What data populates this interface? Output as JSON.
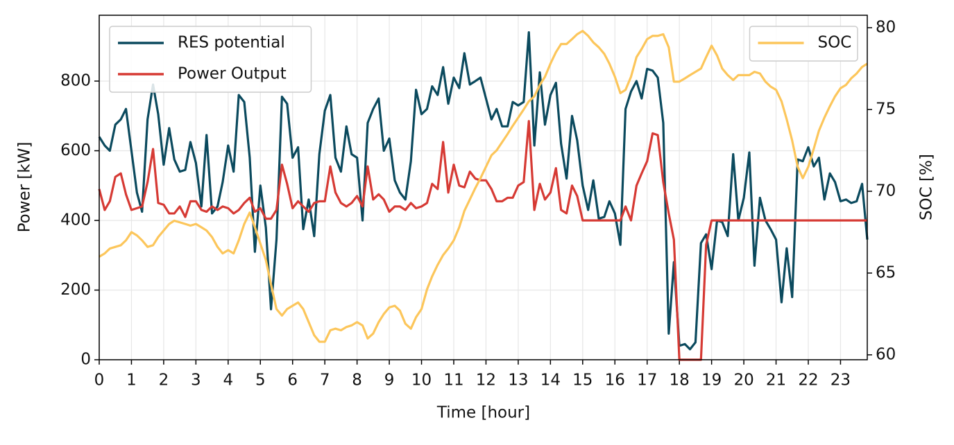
{
  "chart_data": {
    "type": "line",
    "xlabel": "Time [hour]",
    "ylabel": "Power [kW]",
    "y2label": "SOC [%]",
    "xlim": [
      0,
      23.83
    ],
    "xticks": [
      0,
      1,
      2,
      3,
      4,
      5,
      6,
      7,
      8,
      9,
      10,
      11,
      12,
      13,
      14,
      15,
      16,
      17,
      18,
      19,
      20,
      21,
      22,
      23
    ],
    "ylim": [
      0,
      989
    ],
    "yticks": [
      0,
      200,
      400,
      600,
      800
    ],
    "y2lim": [
      59.7,
      80.76
    ],
    "y2ticks": [
      60,
      65,
      70,
      75,
      80
    ],
    "grid": true,
    "legend": "upper left",
    "y2_legend": "upper right",
    "x": [
      0,
      0.17,
      0.33,
      0.5,
      0.67,
      0.83,
      1,
      1.17,
      1.33,
      1.5,
      1.67,
      1.83,
      2,
      2.17,
      2.33,
      2.5,
      2.67,
      2.83,
      3,
      3.17,
      3.33,
      3.5,
      3.67,
      3.83,
      4,
      4.17,
      4.33,
      4.5,
      4.67,
      4.83,
      5,
      5.17,
      5.33,
      5.5,
      5.67,
      5.83,
      6,
      6.17,
      6.33,
      6.5,
      6.67,
      6.83,
      7,
      7.17,
      7.33,
      7.5,
      7.67,
      7.83,
      8,
      8.17,
      8.33,
      8.5,
      8.67,
      8.83,
      9,
      9.17,
      9.33,
      9.5,
      9.67,
      9.83,
      10,
      10.17,
      10.33,
      10.5,
      10.67,
      10.83,
      11,
      11.17,
      11.33,
      11.5,
      11.67,
      11.83,
      12,
      12.17,
      12.33,
      12.5,
      12.67,
      12.83,
      13,
      13.17,
      13.33,
      13.5,
      13.67,
      13.83,
      14,
      14.17,
      14.33,
      14.5,
      14.67,
      14.83,
      15,
      15.17,
      15.33,
      15.5,
      15.67,
      15.83,
      16,
      16.17,
      16.33,
      16.5,
      16.67,
      16.83,
      17,
      17.17,
      17.33,
      17.5,
      17.67,
      17.83,
      18,
      18.17,
      18.33,
      18.5,
      18.67,
      18.83,
      19,
      19.17,
      19.33,
      19.5,
      19.67,
      19.83,
      20,
      20.17,
      20.33,
      20.5,
      20.67,
      20.83,
      21,
      21.17,
      21.33,
      21.5,
      21.67,
      21.83,
      22,
      22.17,
      22.33,
      22.5,
      22.67,
      22.83,
      23,
      23.17,
      23.33,
      23.5,
      23.67,
      23.83
    ],
    "series": [
      {
        "name": "RES potential",
        "color": "#0b4a5e",
        "values": [
          640,
          615,
          600,
          675,
          690,
          720,
          600,
          480,
          425,
          690,
          790,
          705,
          560,
          665,
          575,
          540,
          545,
          625,
          565,
          440,
          645,
          420,
          440,
          510,
          615,
          540,
          760,
          740,
          580,
          310,
          500,
          380,
          145,
          345,
          755,
          735,
          580,
          610,
          375,
          460,
          355,
          590,
          715,
          760,
          580,
          540,
          670,
          590,
          580,
          400,
          680,
          720,
          750,
          600,
          635,
          515,
          480,
          460,
          570,
          775,
          705,
          720,
          785,
          760,
          840,
          735,
          810,
          780,
          880,
          790,
          800,
          810,
          750,
          690,
          720,
          670,
          670,
          740,
          730,
          740,
          940,
          615,
          825,
          675,
          760,
          795,
          620,
          520,
          700,
          630,
          500,
          430,
          515,
          405,
          410,
          455,
          420,
          330,
          720,
          770,
          800,
          750,
          835,
          830,
          810,
          680,
          75,
          280,
          40,
          45,
          30,
          50,
          335,
          360,
          260,
          400,
          395,
          355,
          590,
          400,
          465,
          595,
          270,
          465,
          400,
          375,
          345,
          165,
          320,
          180,
          575,
          570,
          610,
          555,
          580,
          460,
          535,
          510,
          455,
          460,
          450,
          455,
          505,
          345
        ]
      },
      {
        "name": "Power Output",
        "color": "#d63a34",
        "values": [
          490,
          430,
          455,
          525,
          535,
          475,
          430,
          435,
          440,
          510,
          605,
          450,
          445,
          420,
          420,
          440,
          410,
          455,
          455,
          430,
          425,
          440,
          430,
          440,
          435,
          420,
          430,
          450,
          465,
          425,
          435,
          405,
          405,
          430,
          560,
          505,
          435,
          455,
          440,
          425,
          450,
          455,
          455,
          555,
          480,
          450,
          440,
          450,
          470,
          440,
          555,
          460,
          475,
          460,
          425,
          440,
          440,
          430,
          450,
          435,
          440,
          450,
          505,
          490,
          625,
          480,
          560,
          500,
          495,
          540,
          520,
          515,
          515,
          490,
          455,
          455,
          465,
          465,
          500,
          510,
          685,
          430,
          505,
          460,
          480,
          550,
          430,
          420,
          500,
          470,
          400,
          400,
          400,
          400,
          400,
          400,
          400,
          400,
          440,
          400,
          500,
          535,
          570,
          650,
          645,
          510,
          420,
          345,
          0,
          0,
          0,
          0,
          0,
          330,
          400,
          400,
          400,
          400,
          400,
          400,
          400,
          400,
          400,
          400,
          400,
          400,
          400,
          400,
          400,
          400,
          400,
          400,
          400,
          400,
          400,
          400,
          400,
          400,
          400,
          400,
          400,
          400,
          400,
          400
        ]
      },
      {
        "name": "SOC",
        "color": "#fcc65b",
        "axis": "y2",
        "values": [
          66.0,
          66.2,
          66.5,
          66.6,
          66.7,
          67.0,
          67.5,
          67.3,
          67.0,
          66.6,
          66.7,
          67.2,
          67.6,
          68.0,
          68.2,
          68.1,
          68.0,
          67.9,
          68.0,
          67.8,
          67.6,
          67.2,
          66.6,
          66.2,
          66.4,
          66.2,
          67.0,
          68.0,
          68.7,
          67.8,
          66.8,
          65.8,
          64.3,
          62.8,
          62.4,
          62.8,
          63.0,
          63.2,
          62.8,
          62.0,
          61.2,
          60.8,
          60.8,
          61.5,
          61.6,
          61.5,
          61.7,
          61.8,
          62.0,
          61.8,
          61.0,
          61.3,
          62.0,
          62.5,
          62.9,
          63.0,
          62.7,
          61.9,
          61.6,
          62.3,
          62.8,
          64.0,
          64.8,
          65.5,
          66.1,
          66.5,
          67.0,
          67.8,
          68.8,
          69.5,
          70.2,
          70.8,
          71.5,
          72.2,
          72.5,
          73.0,
          73.5,
          74.0,
          74.5,
          75.0,
          75.5,
          75.8,
          76.5,
          77.0,
          77.8,
          78.5,
          79.0,
          79.0,
          79.3,
          79.6,
          79.8,
          79.5,
          79.1,
          78.8,
          78.4,
          77.8,
          77.0,
          76.0,
          76.2,
          77.0,
          78.2,
          78.7,
          79.3,
          79.5,
          79.5,
          79.6,
          78.8,
          76.7,
          76.7,
          76.9,
          77.1,
          77.3,
          77.5,
          78.2,
          78.9,
          78.3,
          77.5,
          77.1,
          76.8,
          77.1,
          77.1,
          77.1,
          77.3,
          77.2,
          76.7,
          76.4,
          76.2,
          75.5,
          74.4,
          73.1,
          71.5,
          70.8,
          71.5,
          72.6,
          73.7,
          74.5,
          75.2,
          75.8,
          76.3,
          76.5,
          76.9,
          77.2,
          77.6,
          77.8
        ]
      }
    ]
  }
}
